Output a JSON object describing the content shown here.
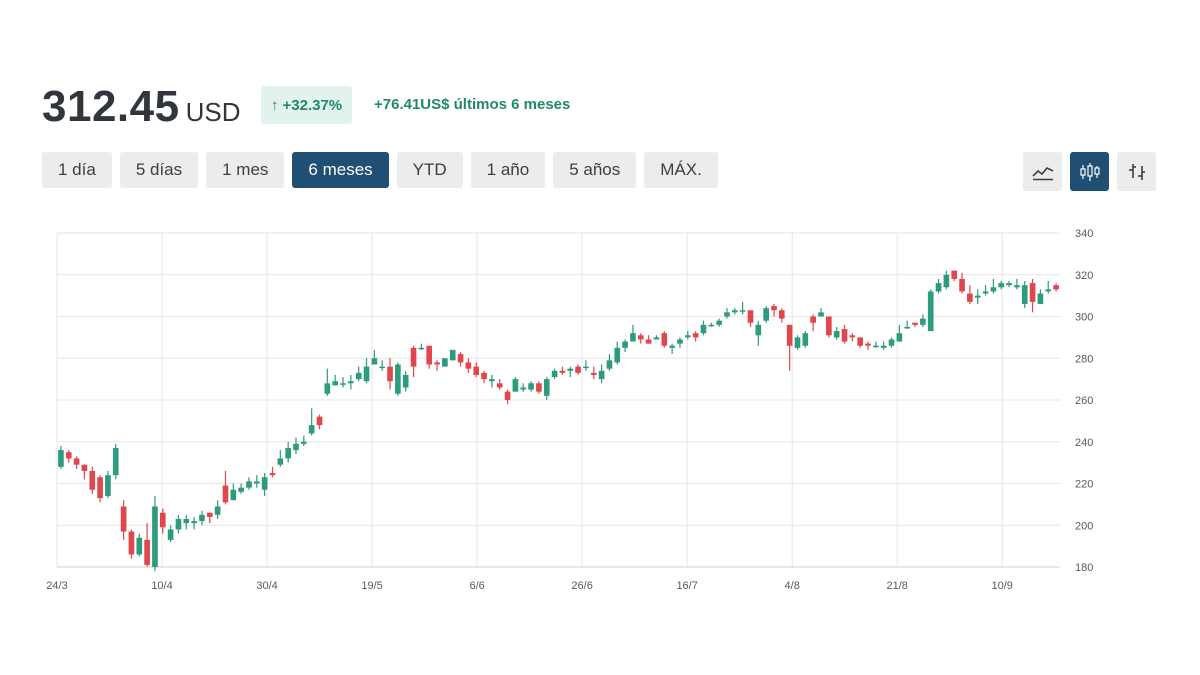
{
  "header": {
    "price": "312.45",
    "currency": "USD",
    "change_pct": "+32.37%",
    "change_arrow": "↑",
    "change_abs": "+76.41US$ últimos 6 meses"
  },
  "ranges": [
    {
      "label": "1 día",
      "active": false
    },
    {
      "label": "5 días",
      "active": false
    },
    {
      "label": "1 mes",
      "active": false
    },
    {
      "label": "6 meses",
      "active": true
    },
    {
      "label": "YTD",
      "active": false
    },
    {
      "label": "1 año",
      "active": false
    },
    {
      "label": "5 años",
      "active": false
    },
    {
      "label": "MÁX.",
      "active": false
    }
  ],
  "view_buttons": [
    {
      "icon": "line-chart-icon",
      "active": false
    },
    {
      "icon": "candlestick-chart-icon",
      "active": true
    },
    {
      "icon": "ohlc-chart-icon",
      "active": false
    }
  ],
  "colors": {
    "up": "#2e9a7e",
    "down": "#e0474c",
    "accent": "#1f4f73",
    "badge_bg": "#e2f3ee",
    "badge_text": "#1f8a6a"
  },
  "chart_data": {
    "type": "candlestick",
    "x_ticks": [
      "24/3",
      "10/4",
      "30/4",
      "19/5",
      "6/6",
      "26/6",
      "16/7",
      "4/8",
      "21/8",
      "10/9"
    ],
    "y_ticks": [
      180,
      200,
      220,
      240,
      260,
      280,
      300,
      320,
      340
    ],
    "ylim": [
      180,
      340
    ],
    "grid": true,
    "candles": [
      [
        228,
        236,
        238,
        227
      ],
      [
        235,
        232,
        236,
        230
      ],
      [
        232,
        229,
        233,
        227
      ],
      [
        229,
        226,
        229,
        222
      ],
      [
        226,
        217,
        228,
        215
      ],
      [
        223,
        213,
        224,
        211
      ],
      [
        214,
        224,
        226,
        213
      ],
      [
        224,
        237,
        239,
        222
      ],
      [
        209,
        197,
        212,
        193
      ],
      [
        197,
        186,
        198,
        184
      ],
      [
        186,
        194,
        196,
        185
      ],
      [
        193,
        181,
        201,
        180
      ],
      [
        180,
        209,
        214,
        178
      ],
      [
        206,
        199,
        208,
        196
      ],
      [
        193,
        198,
        200,
        192
      ],
      [
        198,
        203,
        205,
        196
      ],
      [
        201,
        203,
        205,
        198
      ],
      [
        201,
        202,
        204,
        198
      ],
      [
        202,
        205,
        207,
        200
      ],
      [
        206,
        204,
        206,
        201
      ],
      [
        205,
        209,
        212,
        203
      ],
      [
        219,
        211,
        226,
        210
      ],
      [
        212,
        217,
        220,
        212
      ],
      [
        216,
        218,
        220,
        215
      ],
      [
        218,
        221,
        223,
        217
      ],
      [
        220,
        221,
        224,
        218
      ],
      [
        217,
        223,
        225,
        214
      ],
      [
        225,
        224,
        228,
        223
      ],
      [
        229,
        232,
        236,
        228
      ],
      [
        232,
        237,
        240,
        230
      ],
      [
        236,
        239,
        242,
        234
      ],
      [
        239,
        240,
        243,
        238
      ],
      [
        244,
        248,
        256,
        243
      ],
      [
        252,
        248,
        253,
        246
      ],
      [
        263,
        268,
        275,
        262
      ],
      [
        267,
        269,
        272,
        267
      ],
      [
        268,
        268,
        271,
        266
      ],
      [
        268,
        269,
        272,
        265
      ],
      [
        270,
        273,
        276,
        269
      ],
      [
        269,
        276,
        280,
        268
      ],
      [
        277,
        280,
        284,
        277
      ],
      [
        276,
        276,
        279,
        274
      ],
      [
        276,
        269,
        280,
        265
      ],
      [
        263,
        277,
        278,
        262
      ],
      [
        266,
        272,
        274,
        264
      ],
      [
        285,
        276,
        286,
        271
      ],
      [
        285,
        285,
        287,
        284
      ],
      [
        286,
        277,
        286,
        275
      ],
      [
        278,
        277,
        279,
        274
      ],
      [
        276,
        280,
        280,
        276
      ],
      [
        279,
        284,
        284,
        279
      ],
      [
        282,
        278,
        283,
        276
      ],
      [
        278,
        275,
        280,
        273
      ],
      [
        276,
        272,
        278,
        271
      ],
      [
        273,
        270,
        274,
        268
      ],
      [
        269,
        270,
        272,
        266
      ],
      [
        268,
        266,
        270,
        265
      ],
      [
        264,
        260,
        265,
        258
      ],
      [
        264,
        270,
        271,
        264
      ],
      [
        265,
        266,
        268,
        264
      ],
      [
        265,
        268,
        269,
        264
      ],
      [
        268,
        264,
        269,
        263
      ],
      [
        262,
        270,
        271,
        260
      ],
      [
        271,
        274,
        275,
        270
      ],
      [
        274,
        273,
        276,
        272
      ],
      [
        274,
        275,
        276,
        271
      ],
      [
        276,
        273,
        277,
        272
      ],
      [
        276,
        276,
        279,
        274
      ],
      [
        273,
        272,
        276,
        270
      ],
      [
        270,
        274,
        277,
        268
      ],
      [
        275,
        279,
        282,
        274
      ],
      [
        278,
        285,
        288,
        277
      ],
      [
        285,
        288,
        289,
        283
      ],
      [
        288,
        292,
        296,
        288
      ],
      [
        291,
        289,
        292,
        287
      ],
      [
        289,
        287,
        291,
        287
      ],
      [
        289,
        290,
        291,
        289
      ],
      [
        292,
        286,
        293,
        285
      ],
      [
        285,
        286,
        287,
        282
      ],
      [
        287,
        289,
        290,
        285
      ],
      [
        290,
        291,
        293,
        289
      ],
      [
        292,
        290,
        293,
        288
      ],
      [
        292,
        296,
        298,
        291
      ],
      [
        296,
        296,
        297,
        295
      ],
      [
        296,
        298,
        299,
        295
      ],
      [
        300,
        302,
        304,
        299
      ],
      [
        302,
        303,
        304,
        301
      ],
      [
        303,
        303,
        307,
        301
      ],
      [
        303,
        297,
        303,
        295
      ],
      [
        291,
        296,
        298,
        286
      ],
      [
        298,
        304,
        305,
        297
      ],
      [
        305,
        303,
        306,
        300
      ],
      [
        303,
        299,
        304,
        297
      ],
      [
        296,
        286,
        296,
        274
      ],
      [
        285,
        290,
        291,
        284
      ],
      [
        286,
        292,
        293,
        285
      ],
      [
        300,
        297,
        301,
        293
      ],
      [
        300,
        302,
        304,
        300
      ],
      [
        300,
        291,
        300,
        290
      ],
      [
        290,
        293,
        295,
        289
      ],
      [
        294,
        288,
        296,
        287
      ],
      [
        291,
        290,
        292,
        288
      ],
      [
        290,
        286,
        290,
        285
      ],
      [
        287,
        286,
        288,
        284
      ],
      [
        286,
        286,
        288,
        285
      ],
      [
        285,
        286,
        288,
        284
      ],
      [
        286,
        289,
        290,
        285
      ],
      [
        288,
        292,
        296,
        288
      ],
      [
        295,
        295,
        298,
        294
      ],
      [
        297,
        296,
        297,
        295
      ],
      [
        296,
        299,
        301,
        295
      ],
      [
        293,
        312,
        313,
        293
      ],
      [
        312,
        316,
        318,
        311
      ],
      [
        314,
        320,
        322,
        313
      ],
      [
        322,
        318,
        320,
        317
      ],
      [
        318,
        312,
        321,
        311
      ],
      [
        311,
        307,
        315,
        306
      ],
      [
        309,
        310,
        313,
        306
      ],
      [
        311,
        312,
        315,
        310
      ],
      [
        312,
        314,
        318,
        311
      ],
      [
        314,
        316,
        317,
        313
      ],
      [
        315,
        316,
        317,
        314
      ],
      [
        314,
        315,
        318,
        313
      ],
      [
        306,
        315,
        317,
        304
      ],
      [
        316,
        307,
        318,
        302
      ],
      [
        306,
        311,
        313,
        306
      ],
      [
        312,
        313,
        317,
        311
      ],
      [
        315,
        313,
        316,
        312
      ]
    ]
  }
}
